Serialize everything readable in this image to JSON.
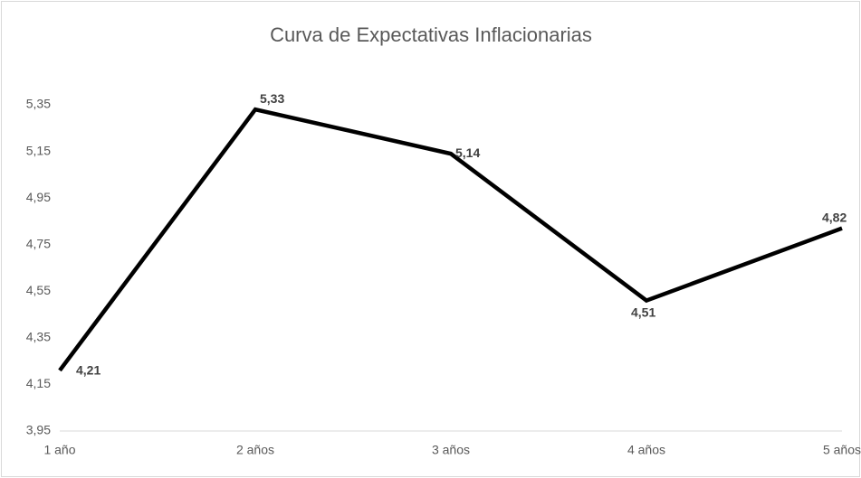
{
  "chart_data": {
    "type": "line",
    "title": "Curva de Expectativas Inflacionarias",
    "categories": [
      "1 año",
      "2 años",
      "3 años",
      "4 años",
      "5 años"
    ],
    "series": [
      {
        "color": "#000000",
        "values": [
          4.21,
          5.33,
          5.14,
          4.51,
          4.82
        ],
        "value_labels": [
          "4,21",
          "5,33",
          "5,14",
          "4,51",
          "4,82"
        ]
      }
    ],
    "ylim": [
      3.95,
      5.35
    ],
    "yticks": [
      {
        "value": 3.95,
        "label": "3,95"
      },
      {
        "value": 4.15,
        "label": "4,15"
      },
      {
        "value": 4.35,
        "label": "4,35"
      },
      {
        "value": 4.55,
        "label": "4,55"
      },
      {
        "value": 4.75,
        "label": "4,75"
      },
      {
        "value": 4.95,
        "label": "4,95"
      },
      {
        "value": 5.15,
        "label": "5,15"
      },
      {
        "value": 5.35,
        "label": "5,35"
      }
    ],
    "grid": false
  }
}
